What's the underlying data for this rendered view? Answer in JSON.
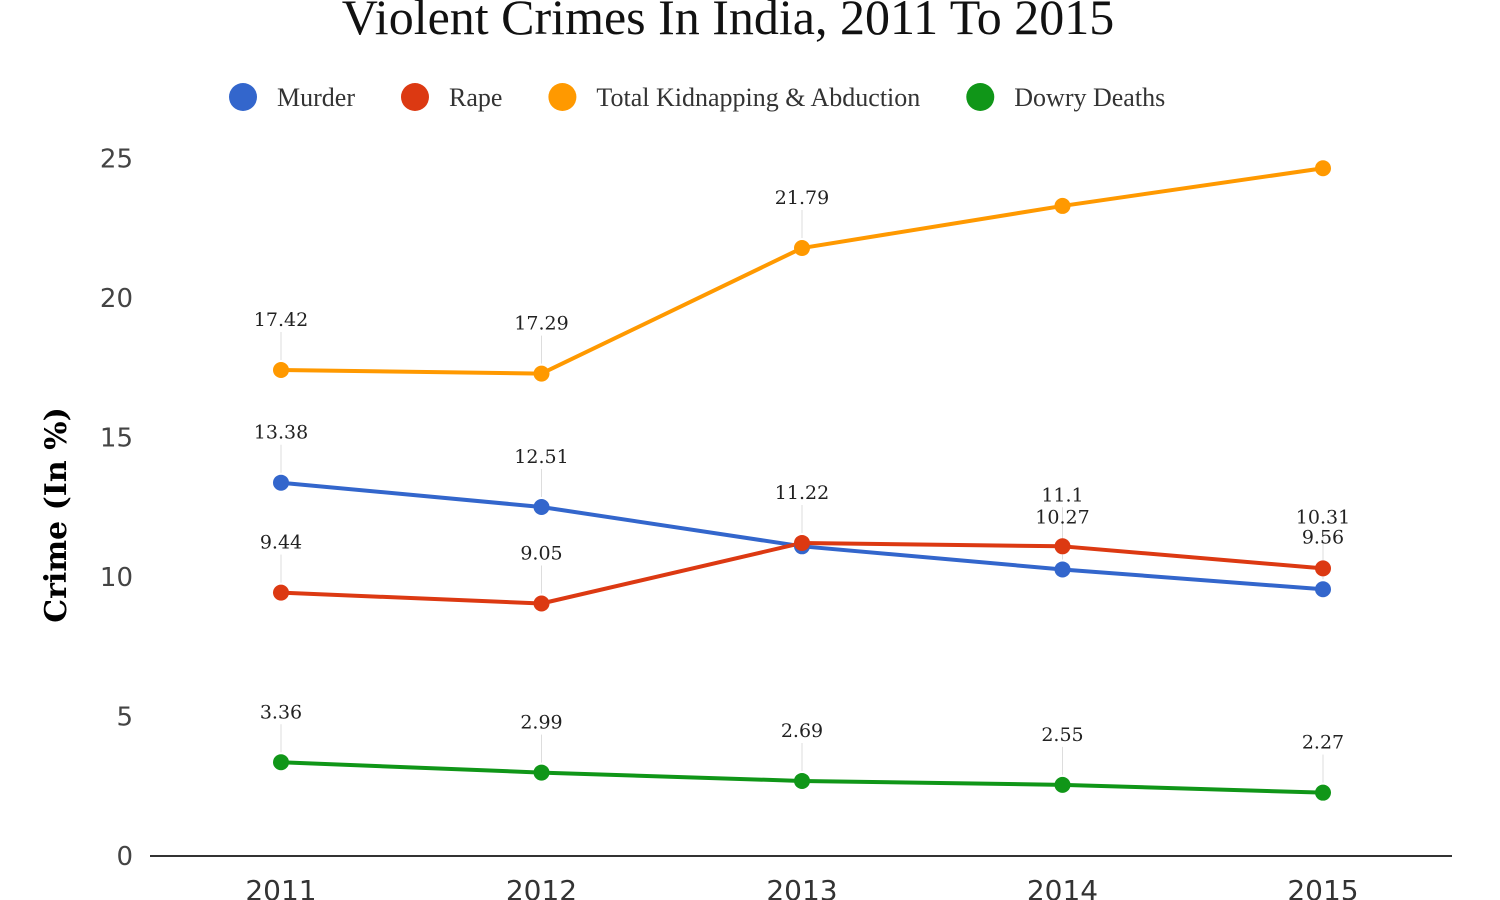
{
  "chart_data": {
    "type": "line",
    "title": "Violent Crimes In India,  2011 To 2015",
    "xlabel": "",
    "ylabel": "Crime (In %)",
    "categories": [
      "2011",
      "2012",
      "2013",
      "2014",
      "2015"
    ],
    "ylim": [
      0,
      25
    ],
    "yticks": [
      0,
      5,
      10,
      15,
      20,
      25
    ],
    "grid": false,
    "legend_position": "top",
    "series": [
      {
        "name": "Murder",
        "color": "#3366cc",
        "values": [
          13.38,
          12.51,
          11.1,
          10.27,
          9.56
        ],
        "labels": [
          "13.38",
          "12.51",
          "",
          "10.27",
          "9.56"
        ]
      },
      {
        "name": "Rape",
        "color": "#dc3912",
        "values": [
          9.44,
          9.05,
          11.22,
          11.1,
          10.31
        ],
        "labels": [
          "9.44",
          "9.05",
          "11.22",
          "11.1",
          "10.31"
        ]
      },
      {
        "name": "Total Kidnapping & Abduction",
        "color": "#ff9900",
        "values": [
          17.42,
          17.29,
          21.79,
          23.3,
          24.65
        ],
        "labels": [
          "17.42",
          "17.29",
          "21.79",
          "",
          ""
        ]
      },
      {
        "name": "Dowry Deaths",
        "color": "#109618",
        "values": [
          3.36,
          2.99,
          2.69,
          2.55,
          2.27
        ],
        "labels": [
          "3.36",
          "2.99",
          "2.69",
          "2.55",
          "2.27"
        ]
      }
    ]
  }
}
